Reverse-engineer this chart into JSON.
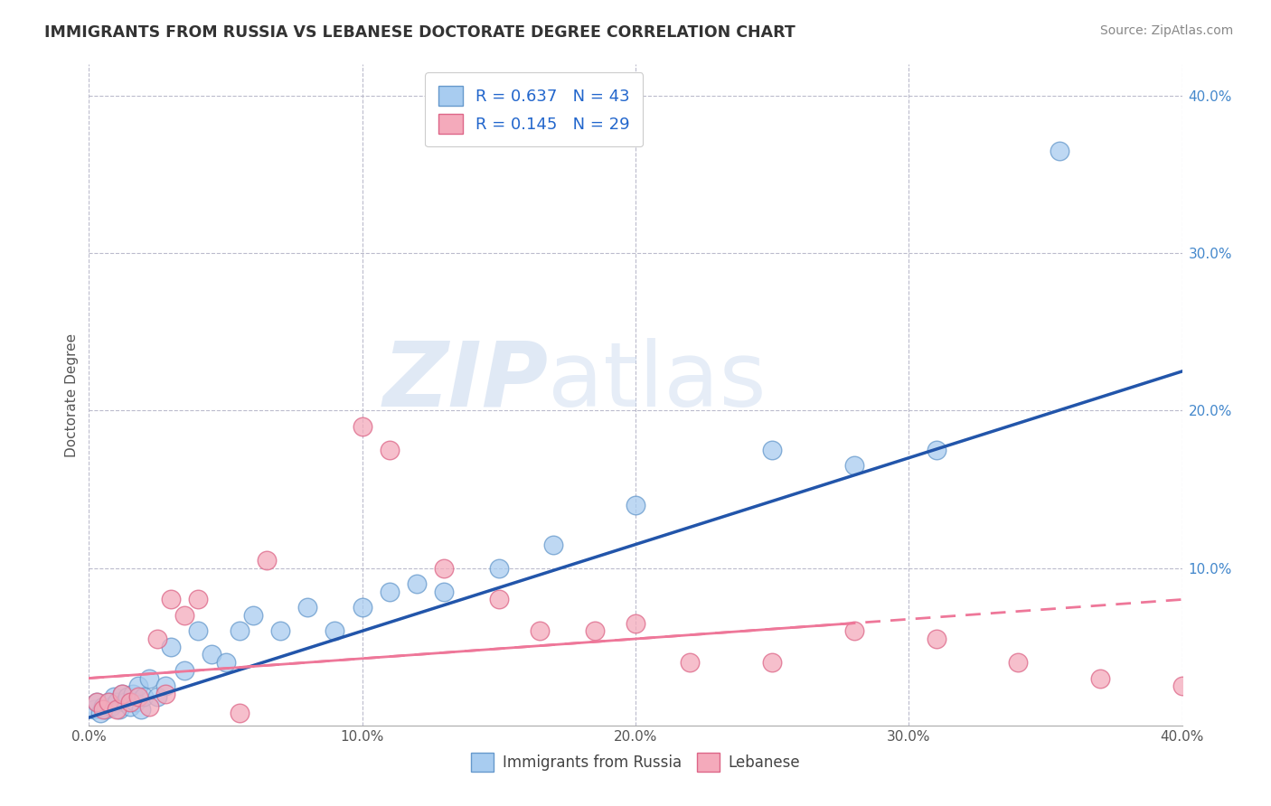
{
  "title": "IMMIGRANTS FROM RUSSIA VS LEBANESE DOCTORATE DEGREE CORRELATION CHART",
  "source": "Source: ZipAtlas.com",
  "ylabel": "Doctorate Degree",
  "xlim": [
    0.0,
    0.4
  ],
  "ylim": [
    0.0,
    0.42
  ],
  "xtick_labels": [
    "0.0%",
    "10.0%",
    "20.0%",
    "30.0%",
    "40.0%"
  ],
  "xtick_vals": [
    0.0,
    0.1,
    0.2,
    0.3,
    0.4
  ],
  "ytick_labels": [
    "10.0%",
    "20.0%",
    "30.0%",
    "40.0%"
  ],
  "ytick_vals": [
    0.1,
    0.2,
    0.3,
    0.4
  ],
  "blue_color": "#A8CCF0",
  "pink_color": "#F4AABB",
  "blue_line_color": "#2255AA",
  "pink_line_color": "#EE7799",
  "watermark_zip": "ZIP",
  "watermark_atlas": "atlas",
  "russia_x": [
    0.002,
    0.003,
    0.004,
    0.005,
    0.006,
    0.007,
    0.008,
    0.009,
    0.01,
    0.011,
    0.012,
    0.013,
    0.014,
    0.015,
    0.016,
    0.017,
    0.018,
    0.019,
    0.02,
    0.022,
    0.025,
    0.028,
    0.03,
    0.035,
    0.04,
    0.045,
    0.05,
    0.055,
    0.06,
    0.07,
    0.08,
    0.09,
    0.1,
    0.11,
    0.12,
    0.13,
    0.15,
    0.17,
    0.2,
    0.25,
    0.28,
    0.31,
    0.355
  ],
  "russia_y": [
    0.01,
    0.015,
    0.008,
    0.012,
    0.01,
    0.015,
    0.012,
    0.018,
    0.015,
    0.01,
    0.02,
    0.015,
    0.018,
    0.012,
    0.02,
    0.015,
    0.025,
    0.01,
    0.018,
    0.03,
    0.018,
    0.025,
    0.05,
    0.035,
    0.06,
    0.045,
    0.04,
    0.06,
    0.07,
    0.06,
    0.075,
    0.06,
    0.075,
    0.085,
    0.09,
    0.085,
    0.1,
    0.115,
    0.14,
    0.175,
    0.165,
    0.175,
    0.365
  ],
  "lebanese_x": [
    0.003,
    0.005,
    0.007,
    0.01,
    0.012,
    0.015,
    0.018,
    0.022,
    0.025,
    0.028,
    0.03,
    0.035,
    0.04,
    0.055,
    0.065,
    0.1,
    0.11,
    0.13,
    0.15,
    0.165,
    0.185,
    0.2,
    0.22,
    0.25,
    0.28,
    0.31,
    0.34,
    0.37,
    0.4
  ],
  "lebanese_y": [
    0.015,
    0.01,
    0.015,
    0.01,
    0.02,
    0.015,
    0.018,
    0.012,
    0.055,
    0.02,
    0.08,
    0.07,
    0.08,
    0.008,
    0.105,
    0.19,
    0.175,
    0.1,
    0.08,
    0.06,
    0.06,
    0.065,
    0.04,
    0.04,
    0.06,
    0.055,
    0.04,
    0.03,
    0.025
  ],
  "blue_line_start_x": 0.0,
  "blue_line_start_y": 0.005,
  "blue_line_end_x": 0.4,
  "blue_line_end_y": 0.225,
  "pink_line_start_x": 0.0,
  "pink_line_start_y": 0.03,
  "pink_line_end_x": 0.4,
  "pink_line_end_y": 0.08
}
